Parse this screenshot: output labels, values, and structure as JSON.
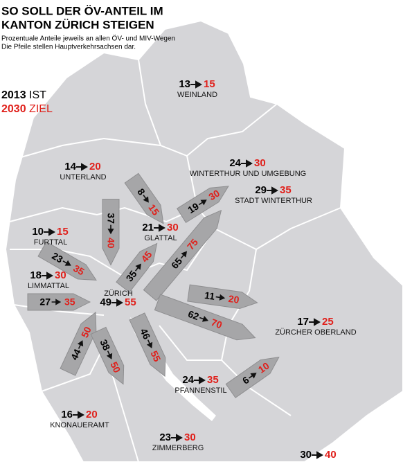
{
  "header": {
    "title": [
      "SO SOLL DER ÖV-ANTEIL IM",
      "KANTON ZÜRICH STEIGEN"
    ],
    "subtitle": [
      "Prozentuale Anteile jeweils an allen ÖV- und MIV-Wegen",
      "Die Pfeile stellen Hauptverkehrsachsen dar."
    ]
  },
  "legend": [
    {
      "year": "2013",
      "label": "IST"
    },
    {
      "year": "2030",
      "label": "ZIEL"
    }
  ],
  "regions": [
    {
      "name": "WEINLAND",
      "from": 13,
      "to": 15
    },
    {
      "name": "UNTERLAND",
      "from": 14,
      "to": 20
    },
    {
      "name": "WINTERTHUR UND UMGEBUNG",
      "from": 24,
      "to": 30
    },
    {
      "name": "STADT WINTERTHUR",
      "from": 29,
      "to": 35
    },
    {
      "name": "GLATTAL",
      "from": 21,
      "to": 30
    },
    {
      "name": "FURTTAL",
      "from": 10,
      "to": 15
    },
    {
      "name": "LIMMATTAL",
      "from": 18,
      "to": 30
    },
    {
      "name": "ZÜRICH",
      "from": 49,
      "to": 55
    },
    {
      "name": "ZÜRCHER OBERLAND",
      "from": 17,
      "to": 25
    },
    {
      "name": "PFANNENSTIL",
      "from": 24,
      "to": 35
    },
    {
      "name": "KNONAUERAMT",
      "from": 16,
      "to": 20
    },
    {
      "name": "ZIMMERBERG",
      "from": 23,
      "to": 30
    },
    {
      "from": 30,
      "to": 40
    }
  ],
  "axes": [
    {
      "from": 8,
      "to": 15
    },
    {
      "from": 19,
      "to": 30
    },
    {
      "from": 37,
      "to": 40
    },
    {
      "from": 23,
      "to": 35
    },
    {
      "from": 35,
      "to": 45
    },
    {
      "from": 65,
      "to": 75
    },
    {
      "from": 27,
      "to": 35
    },
    {
      "from": 11,
      "to": 20
    },
    {
      "from": 62,
      "to": 70
    },
    {
      "from": 44,
      "to": 50
    },
    {
      "from": 38,
      "to": 50
    },
    {
      "from": 46,
      "to": 55
    },
    {
      "from": 6,
      "to": 10
    }
  ]
}
